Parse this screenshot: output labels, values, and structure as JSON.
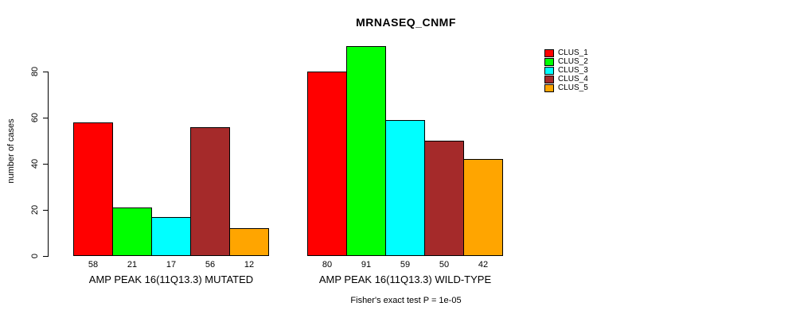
{
  "chart_data": {
    "type": "bar",
    "title": "MRNASEQ_CNMF",
    "ylabel": "number of cases",
    "xlabel": "",
    "axis_ticks": [
      0,
      20,
      40,
      60,
      80
    ],
    "ylim": [
      0,
      91
    ],
    "grid": false,
    "legend_position": "right-outside",
    "series_labels": [
      "CLUS_1",
      "CLUS_2",
      "CLUS_3",
      "CLUS_4",
      "CLUS_5"
    ],
    "series_colors": [
      "#ff0000",
      "#00ff00",
      "#00ffff",
      "#a52a2a",
      "#ffa500"
    ],
    "groups": [
      {
        "label": "AMP PEAK 16(11Q13.3) MUTATED",
        "values": [
          58,
          21,
          17,
          56,
          12
        ]
      },
      {
        "label": "AMP PEAK 16(11Q13.3) WILD-TYPE",
        "values": [
          80,
          91,
          59,
          50,
          42
        ]
      }
    ],
    "bar_value_labels": [
      [
        58,
        21,
        17,
        56,
        12
      ],
      [
        80,
        91,
        59,
        50,
        42
      ]
    ],
    "annotation": "Fisher's exact test P = 1e-05"
  },
  "colors": {
    "background": "#ffffff",
    "axis": "#000000",
    "text": "#000000"
  }
}
